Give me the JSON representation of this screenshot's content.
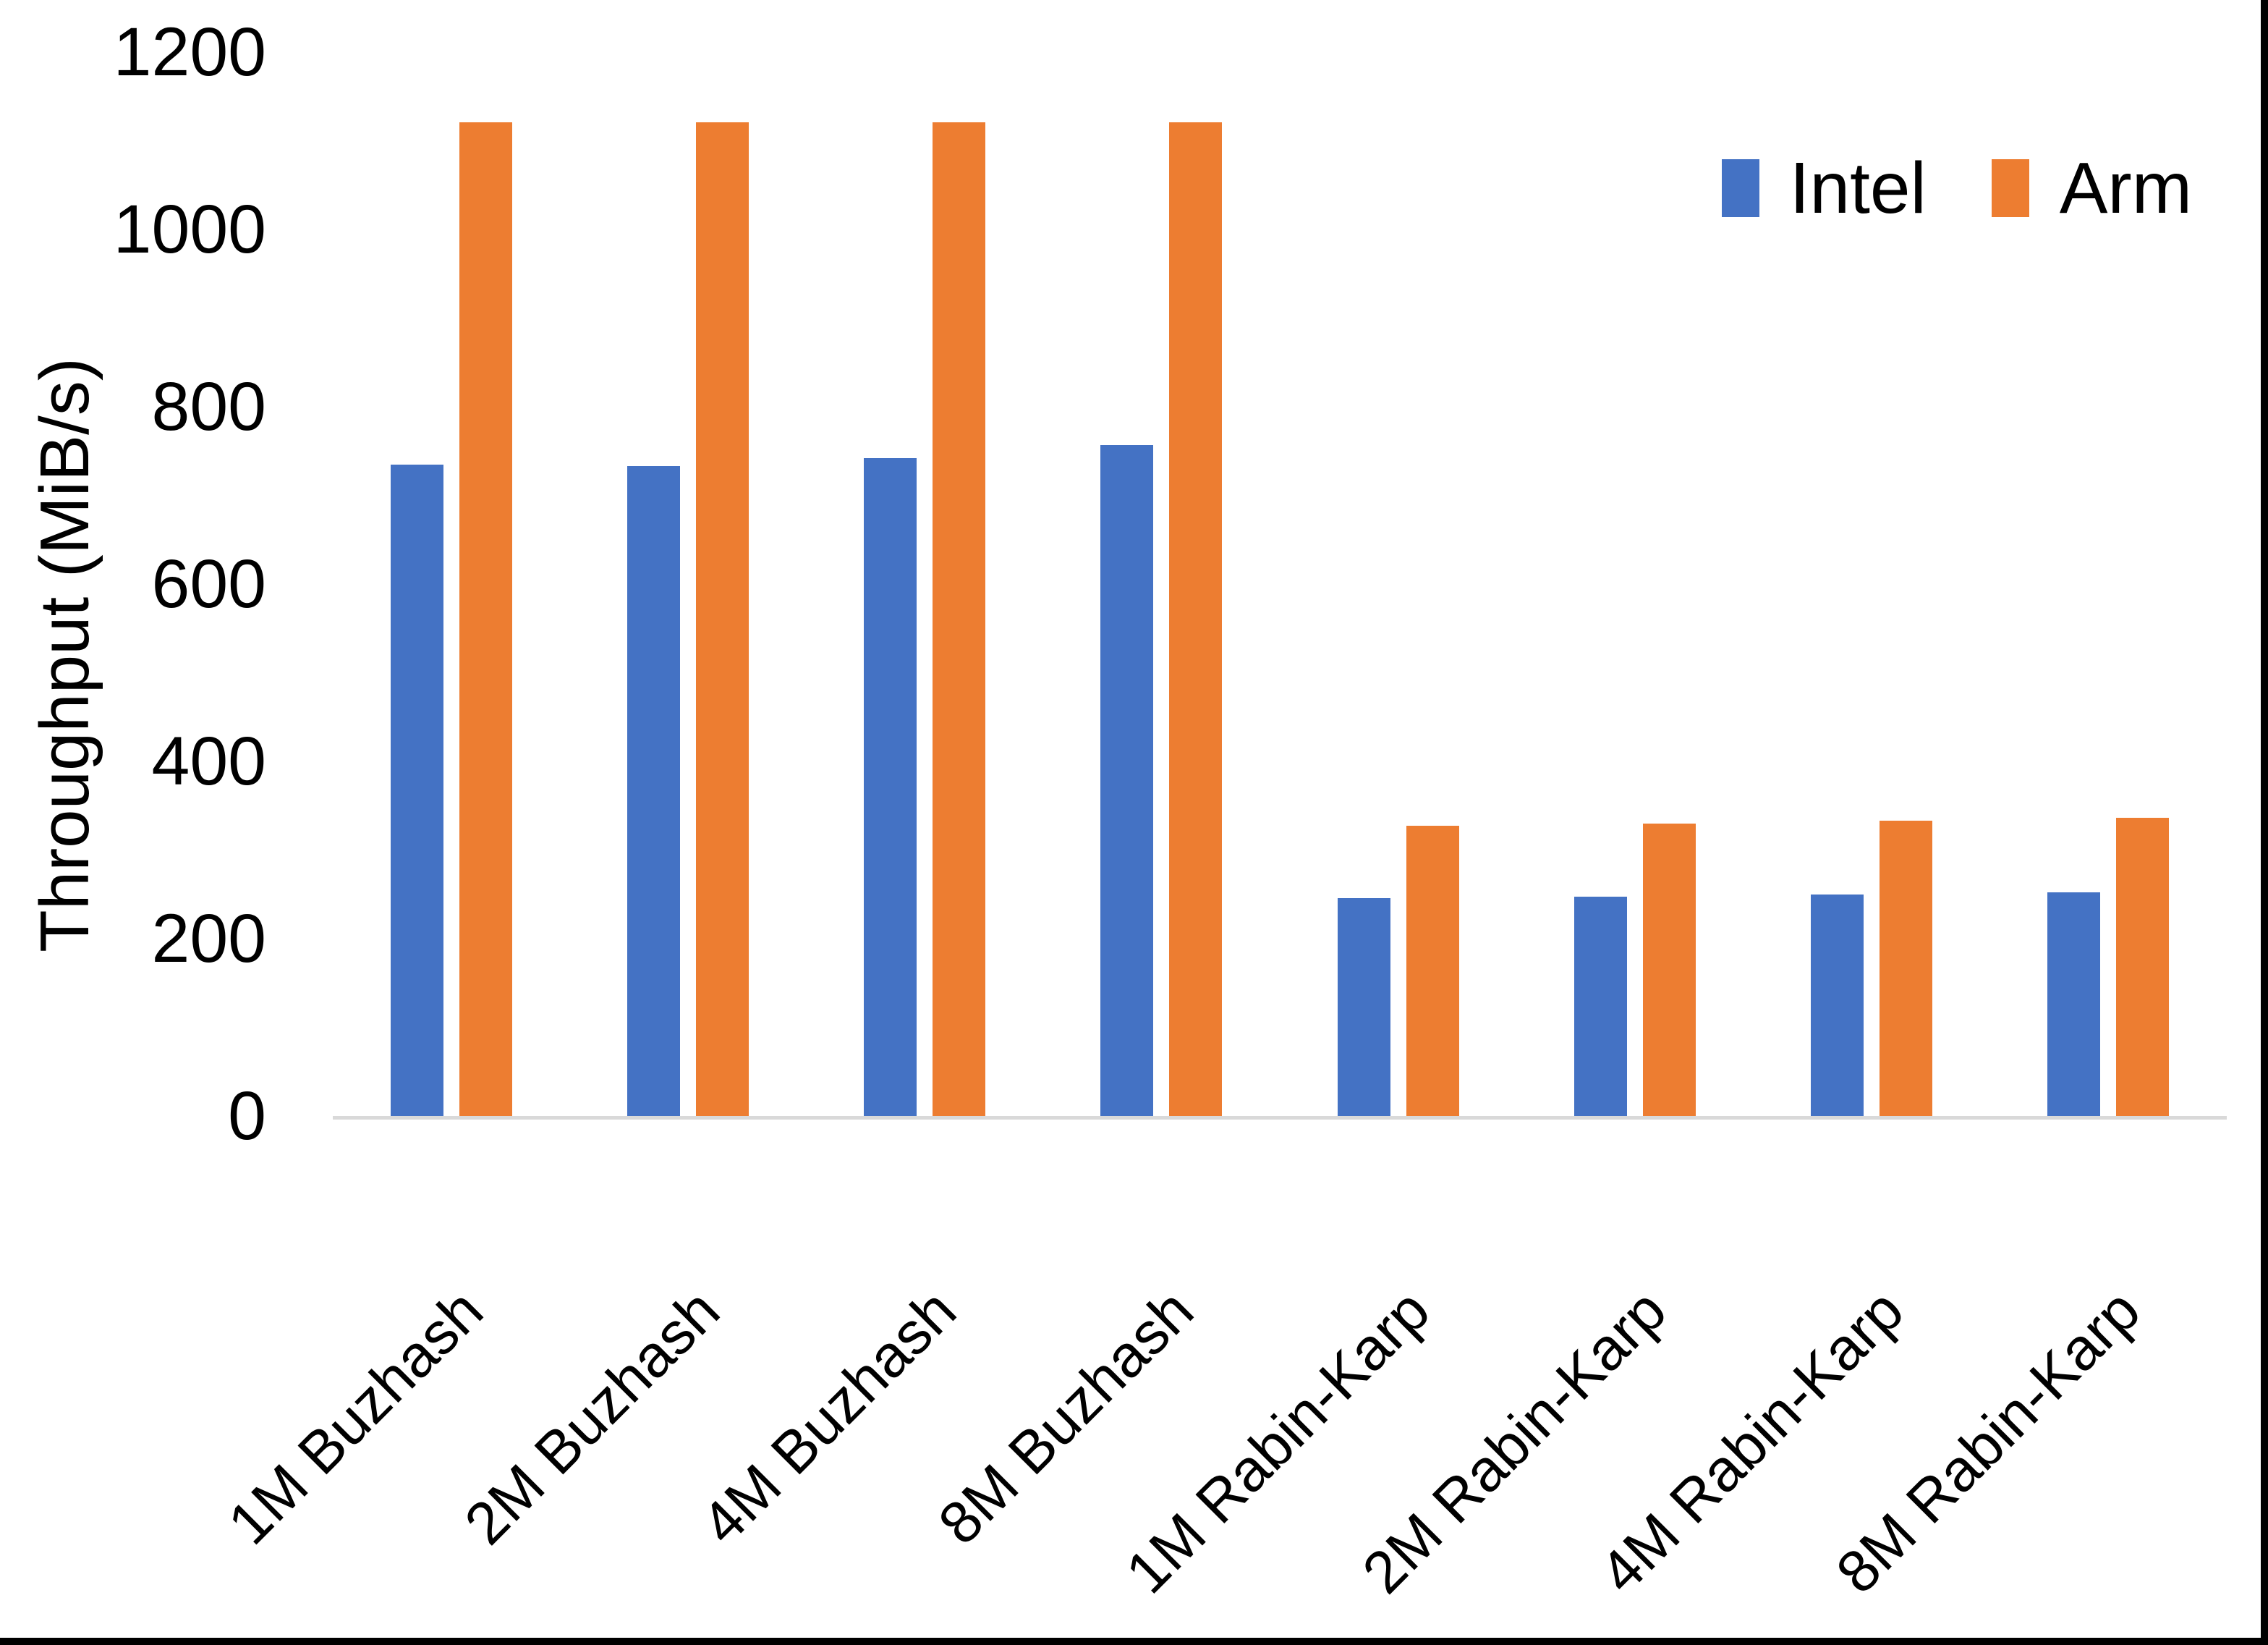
{
  "chart_data": {
    "type": "bar",
    "title": "",
    "xlabel": "",
    "ylabel": "Throughput (MiB/s)",
    "categories": [
      "1M Buzhash",
      "2M Buzhash",
      "4M Buzhash",
      "8M Buzhash",
      "1M Rabin-Karp",
      "2M Rabin-Karp",
      "4M Rabin-Karp",
      "8M Rabin-Karp"
    ],
    "series": [
      {
        "name": "Intel",
        "color": "#4472C4",
        "values": [
          735,
          733,
          742,
          757,
          246,
          247,
          250,
          252
        ]
      },
      {
        "name": "Arm",
        "color": "#ED7D31",
        "values": [
          1121,
          1121,
          1121,
          1121,
          327,
          330,
          333,
          336
        ]
      }
    ],
    "ylim": [
      0,
      1200
    ],
    "yticks": [
      0,
      200,
      400,
      600,
      800,
      1000,
      1200
    ],
    "grid": false,
    "legend_position": "top-right",
    "x_tick_rotation_deg": 45,
    "axis_line_color": "#D9D9D9",
    "text_color": "#000000",
    "background_color": "#FFFFFF",
    "frame_border_color": "#000000"
  }
}
